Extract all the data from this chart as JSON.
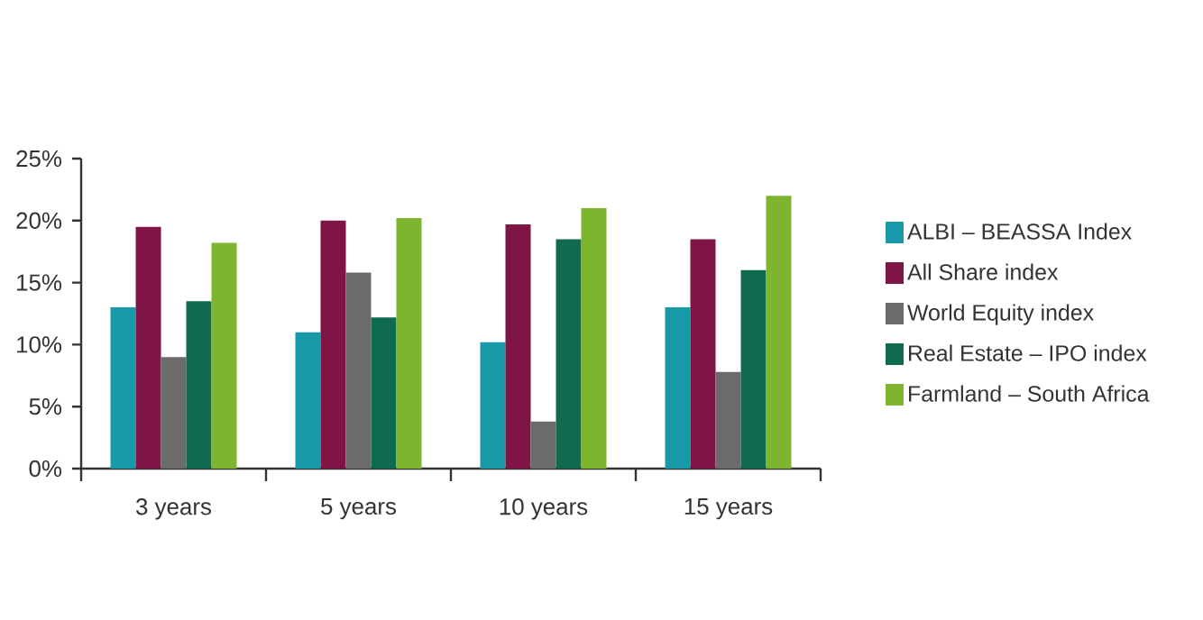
{
  "chart_data": {
    "type": "bar",
    "categories": [
      "3 years",
      "5 years",
      "10 years",
      "15 years"
    ],
    "series": [
      {
        "name": "ALBI – BEASSA Index",
        "color": "#1799a8",
        "values": [
          13,
          11,
          10.2,
          13
        ]
      },
      {
        "name": "All Share index",
        "color": "#7f1447",
        "values": [
          19.5,
          20,
          19.7,
          18.5
        ]
      },
      {
        "name": "World Equity index",
        "color": "#6b6b6b",
        "values": [
          9,
          15.8,
          3.8,
          7.8
        ]
      },
      {
        "name": "Real Estate – IPO index",
        "color": "#0f6a50",
        "values": [
          13.5,
          12.2,
          18.5,
          16
        ]
      },
      {
        "name": "Farmland – South Africa",
        "color": "#7db52f",
        "values": [
          18.2,
          20.2,
          21,
          22
        ]
      }
    ],
    "ylim": [
      0,
      25
    ],
    "yticks": [
      {
        "value": 0,
        "label": "0%"
      },
      {
        "value": 5,
        "label": "5%"
      },
      {
        "value": 10,
        "label": "10%"
      },
      {
        "value": 15,
        "label": "15%"
      },
      {
        "value": 20,
        "label": "20%"
      },
      {
        "value": 25,
        "label": "25%"
      }
    ],
    "grid": false,
    "legend": "right"
  }
}
